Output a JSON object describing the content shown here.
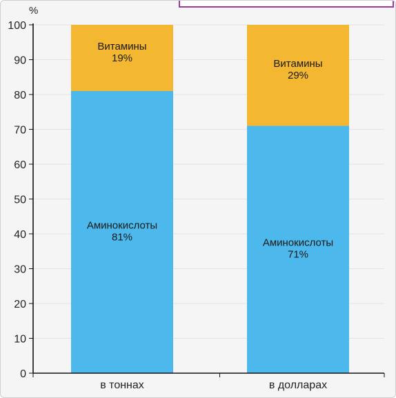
{
  "chart_data": {
    "type": "bar",
    "stacked": true,
    "unit_label": "%",
    "categories": [
      "в тоннах",
      "в долларах"
    ],
    "series": [
      {
        "name": "Аминокислоты",
        "values": [
          81,
          71
        ],
        "color": "#4db8eb"
      },
      {
        "name": "Витамины",
        "values": [
          19,
          29
        ],
        "color": "#f3b731"
      }
    ],
    "data_labels": [
      {
        "category": "в тоннах",
        "series": "Аминокислоты",
        "name": "Аминокислоты",
        "value": "81%"
      },
      {
        "category": "в тоннах",
        "series": "Витамины",
        "name": "Витамины",
        "value": "19%"
      },
      {
        "category": "в долларах",
        "series": "Аминокислоты",
        "name": "Аминокислоты",
        "value": "71%"
      },
      {
        "category": "в долларах",
        "series": "Витамины",
        "name": "Витамины",
        "value": "29%"
      }
    ],
    "ylim": [
      0,
      100
    ],
    "yticks": [
      "0",
      "10",
      "20",
      "30",
      "40",
      "50",
      "60",
      "70",
      "80",
      "90",
      "100"
    ],
    "grid": true,
    "colors": {
      "axis": "#111111",
      "grid": "#e2e2e2",
      "frame": "#9b3a9b"
    }
  }
}
